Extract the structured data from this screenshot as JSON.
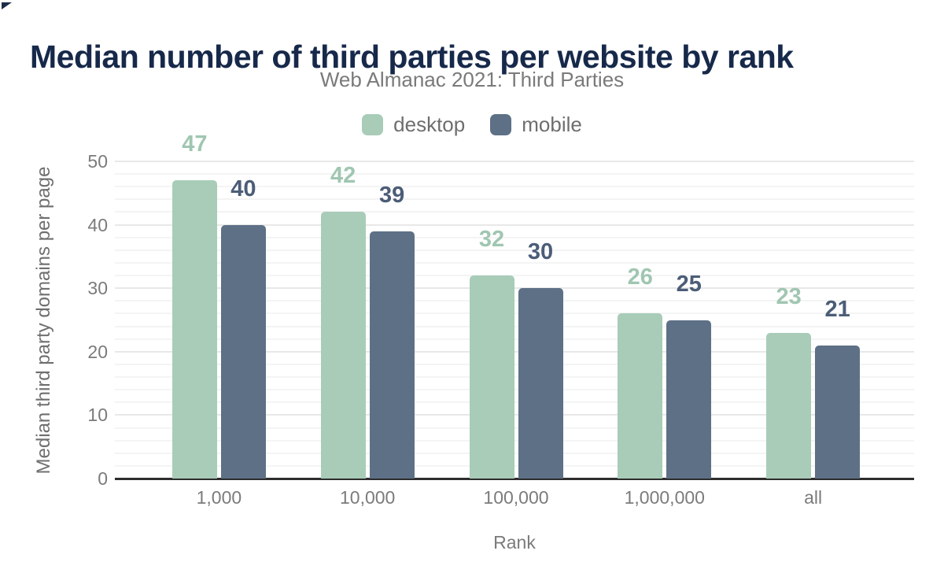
{
  "chart_data": {
    "type": "bar",
    "title": "Median number of third parties per website by rank",
    "subtitle": "Web Almanac 2021: Third Parties",
    "xlabel": "Rank",
    "ylabel": "Median third party domains per page",
    "categories": [
      "1,000",
      "10,000",
      "100,000",
      "1,000,000",
      "all"
    ],
    "series": [
      {
        "name": "desktop",
        "values": [
          47,
          42,
          32,
          26,
          23
        ],
        "color": "#a8ccb8",
        "label_color": "#a0c6b1"
      },
      {
        "name": "mobile",
        "values": [
          40,
          39,
          30,
          25,
          21
        ],
        "color": "#5d7086",
        "label_color": "#4b5d77"
      }
    ],
    "ylim": [
      0,
      52
    ],
    "yticks": [
      0,
      10,
      20,
      30,
      40,
      50
    ],
    "grid": {
      "minor_step": 2,
      "major_step": 10,
      "minor_color": "#f4f4f4",
      "major_color": "#e8e8e8"
    },
    "legend_position": "top-center",
    "axis_line_color": "#2d2d2d",
    "title_color": "#17294a",
    "subtitle_color": "#7a7a7a",
    "tick_label_color": "#7b7b7b"
  }
}
